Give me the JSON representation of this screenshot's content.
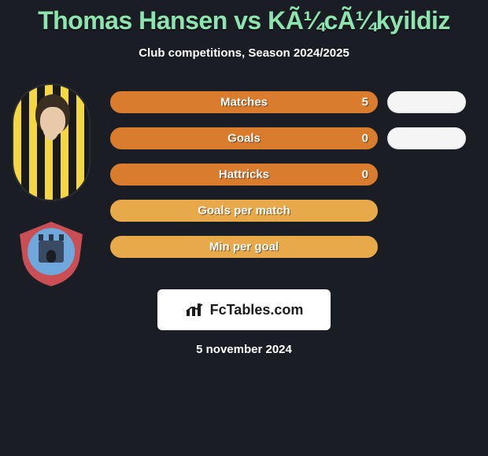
{
  "title": "Thomas Hansen vs KÃ¼cÃ¼kyildiz",
  "subtitle": "Club competitions, Season 2024/2025",
  "date": "5 november 2024",
  "brand": {
    "label": "FcTables.com"
  },
  "colors": {
    "title": "#8ee4af",
    "bg": "#1a1d24",
    "text": "#ffffff",
    "pill": "#f5f5f5",
    "track_border": [
      "#d97c2e",
      "#d97c2e",
      "#d97c2e",
      "#e8a94a",
      "#e8a94a"
    ],
    "fill": [
      "#d97c2e",
      "#d97c2e",
      "#d97c2e",
      "#e8a94a",
      "#e8a94a"
    ]
  },
  "bars": [
    {
      "label": "Matches",
      "value": "5",
      "fill_pct": 100,
      "show_pill": true
    },
    {
      "label": "Goals",
      "value": "0",
      "fill_pct": 100,
      "show_pill": true
    },
    {
      "label": "Hattricks",
      "value": "0",
      "fill_pct": 100,
      "show_pill": false
    },
    {
      "label": "Goals per match",
      "value": "",
      "fill_pct": 100,
      "show_pill": false
    },
    {
      "label": "Min per goal",
      "value": "",
      "fill_pct": 100,
      "show_pill": false
    }
  ],
  "crest": {
    "outer": "#c94f55",
    "mid": "#6fa8dc",
    "inner": "#3a4a63",
    "crenel": "#2a3547"
  }
}
